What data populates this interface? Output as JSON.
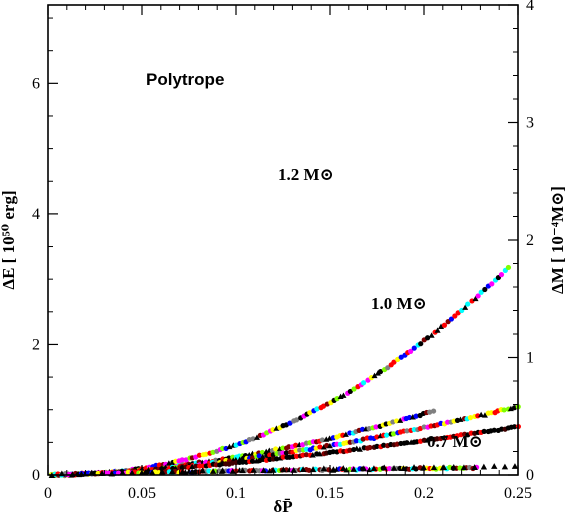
{
  "chart_data": {
    "type": "scatter",
    "title": "Polytrope",
    "xlabel": "δP̄",
    "ylabel_left": "ΔE  [ 10⁵⁰ erg]",
    "ylabel_right": "ΔM  [ 10⁻⁴M⊙]",
    "xlim": [
      0,
      0.25
    ],
    "ylim_left": [
      0,
      7.2
    ],
    "ylim_right": [
      0,
      4
    ],
    "x_ticks": [
      "0",
      "0.05",
      "0.1",
      "0.15",
      "0.2",
      "0.25"
    ],
    "y_ticks_left": [
      "0",
      "2",
      "4",
      "6"
    ],
    "y_ticks_right": [
      "0",
      "1",
      "2",
      "3",
      "4"
    ],
    "annotations": [
      {
        "text": "1.2 M⊙",
        "x": 0.158,
        "y": 4.55
      },
      {
        "text": "1.0 M⊙",
        "x": 0.172,
        "y": 2.5
      },
      {
        "text": "0.7 M⊙",
        "x": 0.201,
        "y": 0.35
      }
    ],
    "marker_colors": [
      "#ff0000",
      "#800000",
      "#0000ff",
      "#00ffff",
      "#ff00ff",
      "#80ff00",
      "#808080",
      "#ffff00",
      "#000000"
    ],
    "series": [
      {
        "name": "1.2 M⊙ ΔE",
        "curve": "powerlaw",
        "a": 0.0232,
        "b": 1.78,
        "xmax": 0.205,
        "colors": "mixed"
      },
      {
        "name": "1.2 M⊙ ΔM",
        "curve": "powerlaw",
        "a": 0.0235,
        "b": 2.15,
        "xmax": 0.245,
        "colors": "mixed"
      },
      {
        "name": "1.0 M⊙ ΔE",
        "curve": "powerlaw",
        "a": 0.0235,
        "b": 1.65,
        "xmax": 0.25,
        "colors": "mixed"
      },
      {
        "name": "1.0 M⊙ ΔM",
        "curve": "powerlaw",
        "a": 0.0235,
        "b": 1.5,
        "xmax": 0.25,
        "colors": "dark"
      },
      {
        "name": "0.7 M⊙ ΔE",
        "curve": "powerlaw",
        "a": 0.0235,
        "b": 0.7,
        "xmax": 0.228,
        "colors": "mixed"
      },
      {
        "name": "0.7 M⊙ ΔM",
        "curve": "powerlaw",
        "a": 0.0235,
        "b": 0.76,
        "xmax": 0.25,
        "colors": "black"
      }
    ]
  }
}
